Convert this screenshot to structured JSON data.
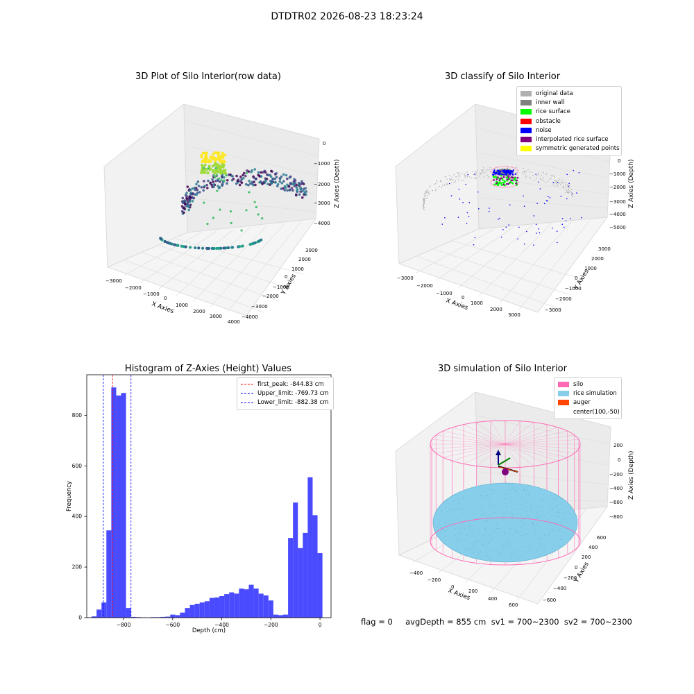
{
  "suptitle": "DTDTR02 2026-08-23 18:23:24",
  "colors": {
    "original": "#b0b0b0",
    "inner_wall": "#808080",
    "rice_surface": "#00ff00",
    "obstacle": "#ff0000",
    "noise": "#0000ff",
    "interpolated": "#800080",
    "symmetric": "#ffff00",
    "silo": "#ff69b4",
    "rice_sim": "#87ceeb",
    "auger": "#ff4500",
    "hist_bar": "#4a4aff",
    "peak_line": "#ff0000",
    "limit_line": "#0000ff"
  },
  "panel_raw": {
    "title": "3D Plot of Silo Interior(row data)",
    "xlabel": "X Axies",
    "ylabel": "Y Axies",
    "zlabel": "Z Axies (Depth)",
    "xticks": [
      "−3000",
      "−2000",
      "−1000",
      "0",
      "1000",
      "2000",
      "3000",
      "4000"
    ],
    "yticks": [
      "−4000",
      "−3000",
      "−2000",
      "−1000",
      "0",
      "1000",
      "2000",
      "3000"
    ],
    "zticks": [
      "0",
      "−1000",
      "−2000",
      "−3000",
      "−4000"
    ]
  },
  "panel_classify": {
    "title": "3D classify of Silo Interior",
    "xlabel": "X Axies",
    "ylabel": "Y Axies",
    "zlabel": "Z Axies (Depth)",
    "xticks": [
      "−3000",
      "−2000",
      "−1000",
      "0",
      "1000",
      "2000",
      "3000"
    ],
    "yticks": [
      "−3000",
      "−2000",
      "−1000",
      "0",
      "1000",
      "2000",
      "3000"
    ],
    "zticks": [
      "0",
      "−1000",
      "−2000",
      "−3000",
      "−4000",
      "−5000"
    ],
    "legend": [
      {
        "label": "original data",
        "color": "#b0b0b0"
      },
      {
        "label": "inner wall",
        "color": "#808080"
      },
      {
        "label": "rice surface",
        "color": "#00ff00"
      },
      {
        "label": "obstacle",
        "color": "#ff0000"
      },
      {
        "label": "noise",
        "color": "#0000ff"
      },
      {
        "label": "interpolated rice surface",
        "color": "#800080"
      },
      {
        "label": "symmetric generated points",
        "color": "#ffff00"
      }
    ]
  },
  "panel_sim": {
    "title": "3D simulation of Silo Interior",
    "xlabel": "X Axies",
    "ylabel": "Y Axies",
    "zlabel": "Z Axies (Depth)",
    "xticks": [
      "−400",
      "−200",
      "0",
      "200",
      "400",
      "600"
    ],
    "yticks": [
      "−600",
      "−400",
      "−200",
      "0",
      "200",
      "400",
      "600"
    ],
    "zticks": [
      "200",
      "0",
      "−200",
      "−400",
      "−600",
      "−800"
    ],
    "legend": [
      {
        "label": "silo",
        "color": "#ff69b4"
      },
      {
        "label": "rice simulation",
        "color": "#87ceeb"
      },
      {
        "label": "auger",
        "color": "#ff4500"
      },
      {
        "label": "center(100,-50)",
        "color": ""
      }
    ]
  },
  "footer": {
    "text": "flag = 0     avgDepth = 855 cm  sv1 = 700~2300  sv2 = 700~2300"
  },
  "chart_data": {
    "type": "bar",
    "title": "Histogram of Z-Axies (Height) Values",
    "xlabel": "Depth (cm)",
    "ylabel": "Frequency",
    "xlim": [
      -950,
      45
    ],
    "ylim": [
      0,
      960
    ],
    "xticks": [
      -800,
      -600,
      -400,
      -200,
      0
    ],
    "xtick_labels": [
      "−800",
      "−600",
      "−400",
      "−200",
      "0"
    ],
    "yticks": [
      0,
      200,
      400,
      600,
      800
    ],
    "bin_width": 20,
    "bins": [
      {
        "x": -940,
        "value": 1
      },
      {
        "x": -920,
        "value": 5
      },
      {
        "x": -900,
        "value": 32
      },
      {
        "x": -880,
        "value": 60
      },
      {
        "x": -860,
        "value": 345
      },
      {
        "x": -840,
        "value": 910
      },
      {
        "x": -820,
        "value": 878
      },
      {
        "x": -800,
        "value": 888
      },
      {
        "x": -780,
        "value": 38
      },
      {
        "x": -760,
        "value": 3
      },
      {
        "x": -740,
        "value": 2
      },
      {
        "x": -720,
        "value": 1
      },
      {
        "x": -680,
        "value": 2
      },
      {
        "x": -660,
        "value": 2
      },
      {
        "x": -640,
        "value": 3
      },
      {
        "x": -620,
        "value": 4
      },
      {
        "x": -600,
        "value": 12
      },
      {
        "x": -580,
        "value": 10
      },
      {
        "x": -560,
        "value": 20
      },
      {
        "x": -540,
        "value": 38
      },
      {
        "x": -520,
        "value": 50
      },
      {
        "x": -500,
        "value": 55
      },
      {
        "x": -480,
        "value": 60
      },
      {
        "x": -460,
        "value": 65
      },
      {
        "x": -440,
        "value": 78
      },
      {
        "x": -420,
        "value": 80
      },
      {
        "x": -400,
        "value": 85
      },
      {
        "x": -380,
        "value": 93
      },
      {
        "x": -360,
        "value": 100
      },
      {
        "x": -340,
        "value": 95
      },
      {
        "x": -320,
        "value": 115
      },
      {
        "x": -300,
        "value": 112
      },
      {
        "x": -280,
        "value": 130
      },
      {
        "x": -260,
        "value": 115
      },
      {
        "x": -240,
        "value": 95
      },
      {
        "x": -220,
        "value": 88
      },
      {
        "x": -200,
        "value": 68
      },
      {
        "x": -180,
        "value": 12
      },
      {
        "x": -160,
        "value": 10
      },
      {
        "x": -140,
        "value": 12
      },
      {
        "x": -120,
        "value": 315
      },
      {
        "x": -100,
        "value": 455
      },
      {
        "x": -80,
        "value": 275
      },
      {
        "x": -60,
        "value": 335
      },
      {
        "x": -40,
        "value": 555
      },
      {
        "x": -20,
        "value": 405
      },
      {
        "x": 0,
        "value": 255
      }
    ],
    "vlines": [
      {
        "label": "first_peak: -844.83 cm",
        "x": -844.83,
        "color": "#ff0000"
      },
      {
        "label": "Upper_limit: -769.73 cm",
        "x": -769.73,
        "color": "#0000ff"
      },
      {
        "label": "Lower_limit: -882.38 cm",
        "x": -882.38,
        "color": "#0000ff"
      }
    ],
    "legend_position": "top-right"
  }
}
